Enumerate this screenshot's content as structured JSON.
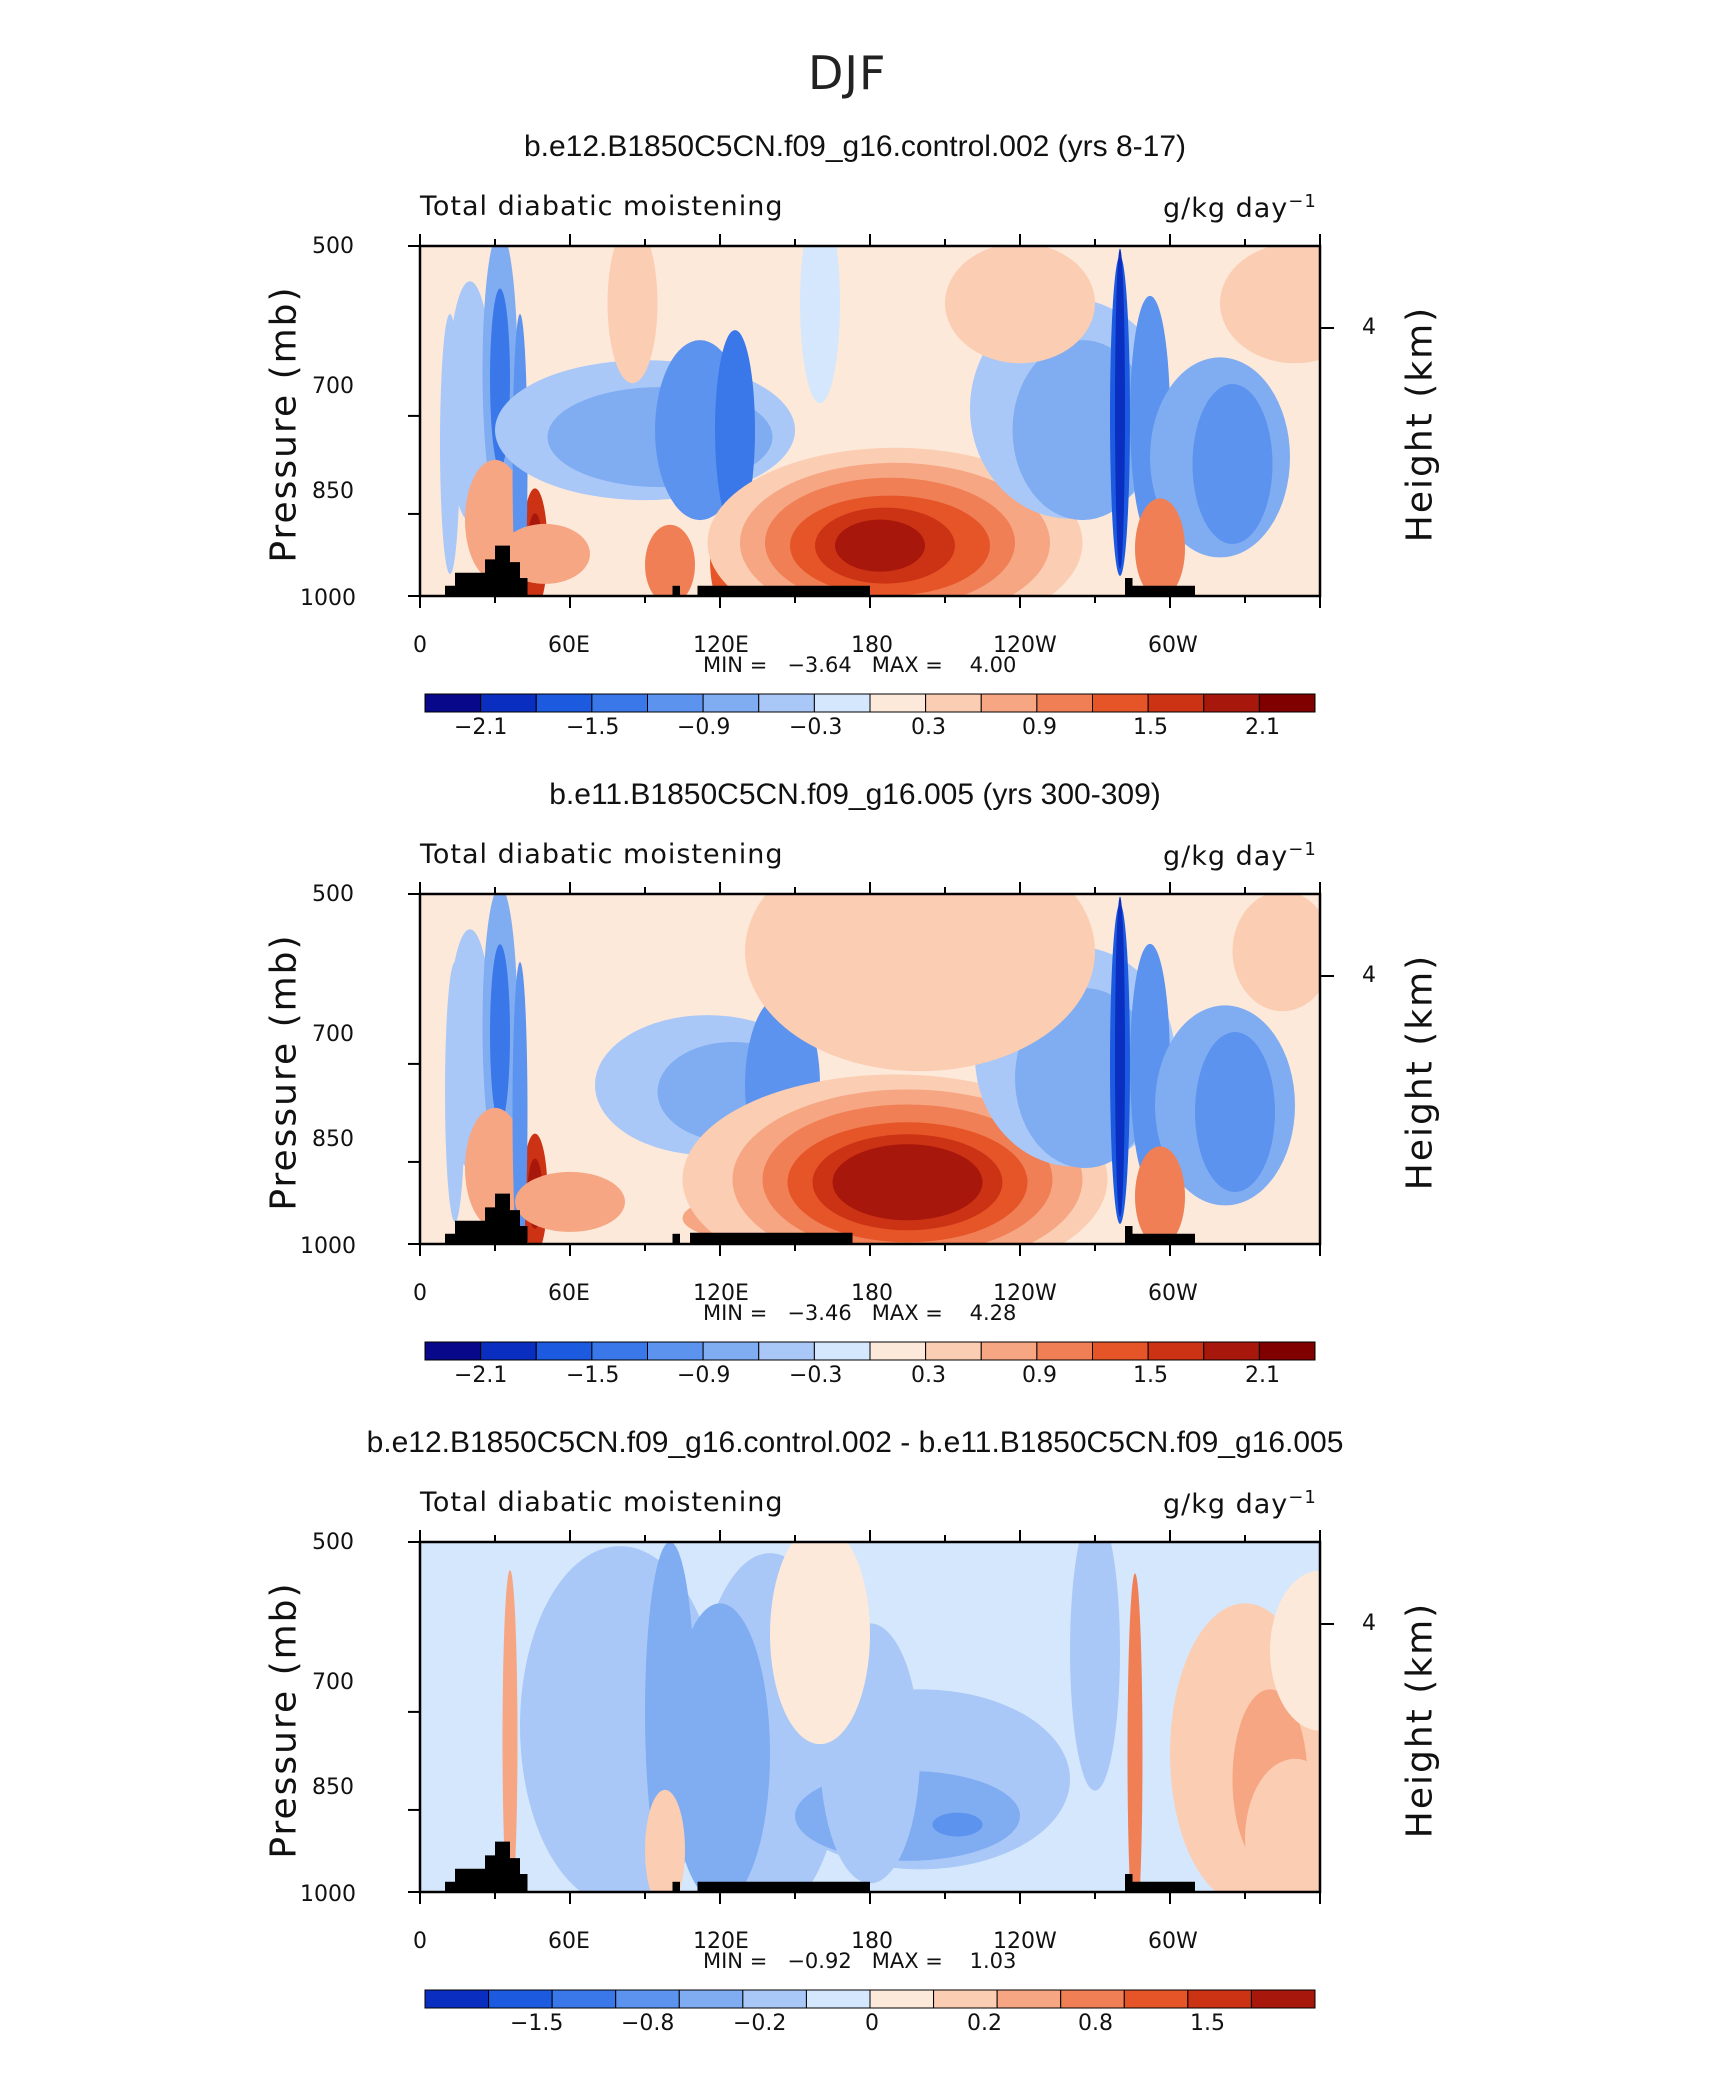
{
  "figure_title": "DJF",
  "chart_data": [
    {
      "type": "heatmap",
      "title": "b.e12.B1850C5CN.f09_g16.control.002 (yrs 8-17)",
      "subtitle_left": "Total diabatic moistening",
      "units_base": "g/kg day",
      "units_exp": "−1",
      "ylabel": "Pressure (mb)",
      "ylabel_right": "Height (km)",
      "xticks": [
        "0",
        "60E",
        "120E",
        "180",
        "120W",
        "60W"
      ],
      "yticks": [
        "500",
        "700",
        "850",
        "1000"
      ],
      "yticks_right": [
        "4"
      ],
      "ylim": [
        1000,
        500
      ],
      "min_label": "MIN =",
      "min_value": "−3.64",
      "max_label": "MAX =",
      "max_value": "4.00",
      "colorbar_labels": [
        "−2.1",
        "−1.5",
        "−0.9",
        "−0.3",
        "0.3",
        "0.9",
        "1.5",
        "2.1"
      ],
      "colorbar_levels": [
        -2.4,
        -2.1,
        -1.8,
        -1.5,
        -1.2,
        -0.9,
        -0.6,
        -0.3,
        0,
        0.3,
        0.6,
        0.9,
        1.2,
        1.5,
        1.8,
        2.1,
        2.4
      ]
    },
    {
      "type": "heatmap",
      "title": "b.e11.B1850C5CN.f09_g16.005 (yrs 300-309)",
      "subtitle_left": "Total diabatic moistening",
      "units_base": "g/kg day",
      "units_exp": "−1",
      "ylabel": "Pressure (mb)",
      "ylabel_right": "Height (km)",
      "xticks": [
        "0",
        "60E",
        "120E",
        "180",
        "120W",
        "60W"
      ],
      "yticks": [
        "500",
        "700",
        "850",
        "1000"
      ],
      "yticks_right": [
        "4"
      ],
      "ylim": [
        1000,
        500
      ],
      "min_label": "MIN =",
      "min_value": "−3.46",
      "max_label": "MAX =",
      "max_value": "4.28",
      "colorbar_labels": [
        "−2.1",
        "−1.5",
        "−0.9",
        "−0.3",
        "0.3",
        "0.9",
        "1.5",
        "2.1"
      ],
      "colorbar_levels": [
        -2.4,
        -2.1,
        -1.8,
        -1.5,
        -1.2,
        -0.9,
        -0.6,
        -0.3,
        0,
        0.3,
        0.6,
        0.9,
        1.2,
        1.5,
        1.8,
        2.1,
        2.4
      ]
    },
    {
      "type": "heatmap",
      "title": "b.e12.B1850C5CN.f09_g16.control.002 - b.e11.B1850C5CN.f09_g16.005",
      "subtitle_left": "Total diabatic moistening",
      "units_base": "g/kg day",
      "units_exp": "−1",
      "ylabel": "Pressure (mb)",
      "ylabel_right": "Height (km)",
      "xticks": [
        "0",
        "60E",
        "120E",
        "180",
        "120W",
        "60W"
      ],
      "yticks": [
        "500",
        "700",
        "850",
        "1000"
      ],
      "yticks_right": [
        "4"
      ],
      "ylim": [
        1000,
        500
      ],
      "min_label": "MIN =",
      "min_value": "−0.92",
      "max_label": "MAX =",
      "max_value": "1.03",
      "colorbar_labels": [
        "−1.5",
        "−0.8",
        "−0.2",
        "0",
        "0.2",
        "0.8",
        "1.5"
      ],
      "colorbar_levels": [
        -2,
        -1.5,
        -1,
        -0.8,
        -0.5,
        -0.2,
        -0.1,
        0,
        0.1,
        0.2,
        0.5,
        0.8,
        1,
        1.5,
        2
      ]
    }
  ],
  "colors": {
    "ramp": [
      "#08088a",
      "#0a2fc0",
      "#1c5ae0",
      "#3a78ea",
      "#5b93ef",
      "#80adf2",
      "#a9c8f7",
      "#d5e7fc",
      "#fde9da",
      "#fbcdb2",
      "#f6a683",
      "#f07f55",
      "#e65528",
      "#cc3214",
      "#a8170b",
      "#800000"
    ],
    "land": "#000000"
  }
}
